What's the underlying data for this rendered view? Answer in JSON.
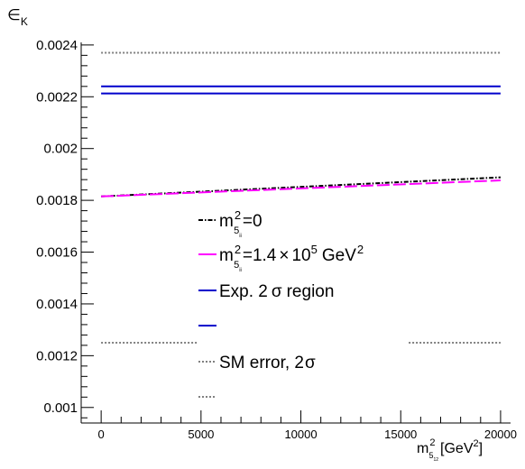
{
  "chart_data": {
    "type": "line",
    "ylabel": "∈",
    "ylabel_sub": "K",
    "xlabel_parts": {
      "m": "m",
      "sup": "2",
      "sub": "5",
      "subsub": "12",
      "unit": "[GeV",
      "unit_sup": "2",
      "close": "]"
    },
    "xlim": [
      -1000,
      20500
    ],
    "ylim": [
      0.00094,
      0.00241
    ],
    "x_ticks": [
      {
        "value": 0,
        "label": "0"
      },
      {
        "value": 5000,
        "label": "5000"
      },
      {
        "value": 10000,
        "label": "10000"
      },
      {
        "value": 15000,
        "label": "15000"
      },
      {
        "value": 20000,
        "label": "20000"
      }
    ],
    "y_ticks": [
      {
        "value": 0.0024,
        "label": "0.0024"
      },
      {
        "value": 0.0022,
        "label": "0.0022"
      },
      {
        "value": 0.002,
        "label": "0.002"
      },
      {
        "value": 0.0018,
        "label": "0.0018"
      },
      {
        "value": 0.0016,
        "label": "0.0016"
      },
      {
        "value": 0.0014,
        "label": "0.0014"
      },
      {
        "value": 0.0012,
        "label": "0.0012"
      },
      {
        "value": 0.001,
        "label": "0.001"
      }
    ],
    "series": [
      {
        "key": "m0",
        "style": "dashdot",
        "color": "#000000",
        "x": [
          0,
          20000
        ],
        "y": [
          0.001815,
          0.001889
        ]
      },
      {
        "key": "m14",
        "style": "longdash",
        "color": "#ff00ff",
        "x": [
          0,
          20000
        ],
        "y": [
          0.001815,
          0.001877
        ]
      },
      {
        "key": "exp_upper",
        "style": "solid",
        "color": "#0000cc",
        "x": [
          0,
          20000
        ],
        "y": [
          0.00224,
          0.00224
        ]
      },
      {
        "key": "exp_lower",
        "style": "solid",
        "color": "#0000cc",
        "x": [
          0,
          20000
        ],
        "y": [
          0.002213,
          0.002213
        ]
      },
      {
        "key": "sm_upper",
        "style": "dotted",
        "color": "#808080",
        "x": [
          0,
          20000
        ],
        "y": [
          0.00237,
          0.00237
        ]
      },
      {
        "key": "sm_lower_left",
        "style": "dotted",
        "color": "#808080",
        "x": [
          0,
          4800
        ],
        "y": [
          0.00125,
          0.00125
        ]
      },
      {
        "key": "sm_lower_right",
        "style": "dotted",
        "color": "#808080",
        "x": [
          15400,
          20000
        ],
        "y": [
          0.00125,
          0.00125
        ]
      }
    ],
    "legend": {
      "position": "center",
      "entries": [
        {
          "style": "dashdot",
          "color": "#000000",
          "parts": {
            "m": "m",
            "sup": "2",
            "sub": "5",
            "subsub": "ii",
            "rest": "=0"
          }
        },
        {
          "style": "longdash",
          "color": "#ff00ff",
          "parts": {
            "m": "m",
            "sup": "2",
            "sub": "5",
            "subsub": "ii",
            "rest": "=1.4",
            "times": "×",
            "ten": "10",
            "exp": "5",
            "unit": "GeV",
            "unit_sup": "2"
          }
        },
        {
          "style": "solid",
          "color": "#0000cc",
          "parts": {
            "label": "Exp. 2",
            "sigma": "σ",
            "after": "region"
          }
        },
        {
          "style": "solid",
          "color": "#0000cc",
          "parts": {}
        },
        {
          "style": "dotted",
          "color": "#808080",
          "parts": {
            "label": "SM error, 2",
            "sigma": "σ"
          }
        },
        {
          "style": "dotted",
          "color": "#808080",
          "parts": {}
        }
      ]
    },
    "grid": false
  }
}
